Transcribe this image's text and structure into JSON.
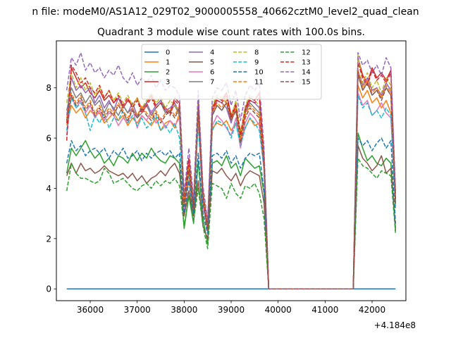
{
  "chart_data": {
    "type": "line",
    "suptitle": "n file: modeM0/AS1A12_029T02_9000005558_40662cztM0_level2_quad_clean",
    "title": "Quadrant 3 module wise count rates with 100.0s bins.",
    "xlabel": "",
    "ylabel": "",
    "offset_text": "+4.184e8",
    "xlim": [
      35280,
      42720
    ],
    "ylim": [
      -0.47,
      9.87
    ],
    "x_ticks": [
      36000,
      37000,
      38000,
      39000,
      40000,
      41000,
      42000
    ],
    "x_tick_labels": [
      "36000",
      "37000",
      "38000",
      "39000",
      "40000",
      "41000",
      "42000"
    ],
    "y_ticks": [
      0,
      2,
      4,
      6,
      8
    ],
    "y_tick_labels": [
      "0",
      "2",
      "4",
      "6",
      "8"
    ],
    "grid": false,
    "legend": {
      "placement": "top-center",
      "columns": 4
    },
    "x": [
      35500,
      35600,
      35700,
      35800,
      35900,
      36000,
      36100,
      36200,
      36300,
      36400,
      36500,
      36600,
      36700,
      36800,
      36900,
      37000,
      37100,
      37200,
      37300,
      37400,
      37500,
      37600,
      37700,
      37800,
      37900,
      38000,
      38100,
      38200,
      38300,
      38400,
      38500,
      38600,
      38700,
      38800,
      38900,
      39000,
      39100,
      39200,
      39300,
      39400,
      39500,
      39600,
      39700,
      39800,
      41600,
      41700,
      41800,
      41900,
      42000,
      42100,
      42200,
      42300,
      42400,
      42500
    ],
    "series": [
      {
        "name": "0",
        "color": "#1f77b4",
        "dash": "solid",
        "values": [
          0,
          0,
          0,
          0,
          0,
          0,
          0,
          0,
          0,
          0,
          0,
          0,
          0,
          0,
          0,
          0,
          0,
          0,
          0,
          0,
          0,
          0,
          0,
          0,
          0,
          0,
          0,
          0,
          0,
          0,
          0,
          0,
          0,
          0,
          0,
          0,
          0,
          0,
          0,
          0,
          0,
          0,
          0,
          0,
          0,
          0,
          0,
          0,
          0,
          0,
          0,
          0,
          0,
          0
        ]
      },
      {
        "name": "1",
        "color": "#ff7f0e",
        "dash": "solid",
        "values": [
          6.5,
          7.3,
          7.0,
          7.2,
          6.8,
          7.1,
          6.9,
          7.0,
          6.6,
          6.8,
          7.0,
          6.7,
          6.9,
          6.5,
          6.8,
          6.6,
          6.9,
          6.7,
          6.5,
          6.8,
          6.3,
          6.6,
          6.7,
          6.4,
          7.0,
          3.2,
          4.3,
          3.0,
          6.7,
          3.4,
          2.3,
          6.4,
          6.6,
          6.5,
          6.7,
          6.3,
          6.6,
          5.8,
          6.4,
          6.8,
          6.5,
          6.6,
          5.0,
          0,
          0,
          8.1,
          7.6,
          7.9,
          7.4,
          7.6,
          7.2,
          7.5,
          7.0,
          3.2
        ]
      },
      {
        "name": "2",
        "color": "#2ca02c",
        "dash": "solid",
        "values": [
          4.6,
          5.6,
          5.3,
          5.6,
          5.9,
          5.5,
          5.2,
          5.4,
          5.0,
          5.2,
          4.9,
          5.3,
          5.2,
          5.0,
          5.4,
          5.1,
          5.4,
          5.2,
          5.6,
          5.3,
          5.1,
          5.0,
          5.3,
          5.2,
          5.0,
          2.4,
          3.7,
          2.6,
          5.1,
          2.8,
          1.8,
          5.0,
          5.1,
          4.9,
          5.3,
          4.8,
          5.0,
          4.5,
          5.2,
          5.0,
          4.8,
          4.9,
          3.8,
          0,
          0,
          6.2,
          5.6,
          5.1,
          5.3,
          5.0,
          4.9,
          5.2,
          5.0,
          2.3
        ]
      },
      {
        "name": "3",
        "color": "#d62728",
        "dash": "solid",
        "values": [
          6.6,
          8.8,
          8.4,
          8.0,
          8.2,
          7.8,
          7.6,
          7.9,
          7.5,
          7.7,
          7.4,
          7.6,
          7.2,
          7.5,
          7.3,
          7.6,
          7.1,
          7.4,
          7.7,
          7.3,
          7.5,
          7.2,
          7.0,
          7.6,
          7.4,
          3.6,
          5.2,
          3.4,
          7.4,
          3.9,
          2.5,
          7.2,
          7.6,
          7.5,
          7.8,
          6.9,
          7.4,
          6.2,
          7.2,
          7.6,
          7.5,
          7.8,
          5.3,
          0,
          0,
          9.2,
          8.5,
          8.2,
          8.8,
          8.4,
          8.6,
          8.3,
          8.7,
          3.5
        ]
      },
      {
        "name": "4",
        "color": "#9467bd",
        "dash": "solid",
        "values": [
          6.9,
          8.4,
          7.9,
          8.1,
          7.8,
          8.0,
          7.4,
          7.7,
          7.2,
          7.5,
          7.1,
          7.6,
          7.3,
          7.0,
          7.4,
          6.9,
          7.2,
          7.4,
          7.0,
          7.3,
          7.5,
          7.1,
          7.2,
          7.4,
          7.0,
          3.5,
          5.0,
          3.3,
          7.3,
          3.8,
          2.6,
          7.0,
          7.5,
          7.4,
          7.2,
          6.6,
          7.3,
          6.0,
          7.1,
          7.5,
          7.4,
          7.2,
          5.0,
          0,
          0,
          8.7,
          8.1,
          8.4,
          7.9,
          8.0,
          7.7,
          8.2,
          7.9,
          3.8
        ]
      },
      {
        "name": "5",
        "color": "#8c564b",
        "dash": "solid",
        "values": [
          4.5,
          5.0,
          4.6,
          5.0,
          4.7,
          4.8,
          4.6,
          4.7,
          4.9,
          4.7,
          4.6,
          4.5,
          4.6,
          4.4,
          4.6,
          4.3,
          4.5,
          4.2,
          4.4,
          4.5,
          4.7,
          4.5,
          4.8,
          5.0,
          4.6,
          2.9,
          3.9,
          2.9,
          4.3,
          2.5,
          2.0,
          4.7,
          4.6,
          4.8,
          4.5,
          4.3,
          4.6,
          4.1,
          4.5,
          4.7,
          4.6,
          4.5,
          3.4,
          0,
          0,
          5.7,
          5.2,
          5.0,
          4.7,
          4.9,
          5.3,
          4.6,
          4.8,
          2.4
        ]
      },
      {
        "name": "6",
        "color": "#e377c2",
        "dash": "solid",
        "values": [
          6.1,
          7.7,
          7.2,
          7.5,
          7.0,
          7.3,
          6.8,
          7.1,
          6.7,
          7.0,
          6.9,
          6.5,
          6.8,
          6.6,
          7.2,
          6.4,
          6.9,
          6.7,
          7.1,
          6.6,
          6.8,
          6.4,
          6.7,
          6.5,
          6.8,
          3.1,
          4.6,
          3.2,
          6.8,
          3.3,
          2.3,
          6.5,
          6.9,
          6.7,
          6.4,
          6.1,
          6.8,
          5.6,
          6.6,
          7.0,
          6.8,
          6.5,
          4.7,
          0,
          0,
          7.8,
          7.3,
          7.5,
          6.9,
          7.1,
          7.4,
          7.0,
          6.8,
          3.4
        ]
      },
      {
        "name": "7",
        "color": "#7f7f7f",
        "dash": "solid",
        "values": [
          7.1,
          8.0,
          7.6,
          7.8,
          7.4,
          7.7,
          7.3,
          7.5,
          7.0,
          7.4,
          7.2,
          6.9,
          7.3,
          7.0,
          7.2,
          6.8,
          7.0,
          7.3,
          6.9,
          7.2,
          7.4,
          7.0,
          7.1,
          7.3,
          6.9,
          3.4,
          4.9,
          3.3,
          7.1,
          3.6,
          2.4,
          6.9,
          7.3,
          7.1,
          7.4,
          6.7,
          7.1,
          5.9,
          7.0,
          7.4,
          7.2,
          7.0,
          4.9,
          0,
          0,
          8.5,
          7.9,
          8.2,
          7.7,
          7.9,
          7.6,
          8.0,
          7.7,
          3.6
        ]
      },
      {
        "name": "8",
        "color": "#bcbd22",
        "dash": "dashed",
        "values": [
          7.4,
          8.6,
          8.0,
          8.4,
          7.9,
          8.2,
          7.7,
          8.0,
          7.6,
          7.9,
          7.5,
          7.8,
          7.4,
          7.7,
          7.3,
          7.6,
          7.2,
          7.5,
          7.8,
          7.4,
          7.6,
          7.2,
          7.5,
          7.3,
          7.1,
          3.5,
          5.0,
          3.4,
          7.5,
          3.8,
          2.5,
          7.3,
          7.7,
          7.6,
          7.4,
          6.8,
          7.5,
          6.1,
          7.3,
          7.7,
          7.5,
          7.3,
          5.2,
          0,
          0,
          9.3,
          8.2,
          8.6,
          8.0,
          8.3,
          7.8,
          8.4,
          8.1,
          3.7
        ]
      },
      {
        "name": "9",
        "color": "#17becf",
        "dash": "dashed",
        "values": [
          6.3,
          7.6,
          7.2,
          7.4,
          7.0,
          6.3,
          6.9,
          6.6,
          7.0,
          6.4,
          6.8,
          6.7,
          7.1,
          6.6,
          6.9,
          6.5,
          6.8,
          6.4,
          6.6,
          6.9,
          6.3,
          6.5,
          6.2,
          6.6,
          6.0,
          3.3,
          4.6,
          3.1,
          6.6,
          3.5,
          2.2,
          6.3,
          6.7,
          6.6,
          6.5,
          6.0,
          6.6,
          5.7,
          6.4,
          6.8,
          6.6,
          6.3,
          4.8,
          0,
          0,
          7.7,
          7.2,
          7.4,
          6.9,
          7.1,
          6.8,
          7.2,
          6.9,
          3.2
        ]
      },
      {
        "name": "10",
        "color": "#1f77b4",
        "dash": "dashed",
        "values": [
          5.0,
          5.9,
          5.5,
          5.7,
          5.3,
          5.5,
          5.6,
          5.4,
          5.6,
          5.2,
          5.5,
          5.3,
          5.6,
          5.2,
          5.3,
          5.5,
          5.1,
          5.4,
          5.2,
          5.4,
          5.5,
          5.3,
          5.5,
          5.2,
          5.4,
          3.0,
          4.3,
          3.0,
          5.4,
          3.0,
          2.2,
          5.3,
          5.4,
          5.2,
          5.5,
          5.0,
          5.3,
          4.8,
          5.2,
          5.4,
          5.3,
          5.4,
          3.9,
          0,
          0,
          6.0,
          5.7,
          5.9,
          5.5,
          5.8,
          6.0,
          5.6,
          5.9,
          2.6
        ]
      },
      {
        "name": "11",
        "color": "#ff7f0e",
        "dash": "dashed",
        "values": [
          6.8,
          7.8,
          7.4,
          7.7,
          7.2,
          7.5,
          7.0,
          7.3,
          6.9,
          7.2,
          7.0,
          7.4,
          7.1,
          6.8,
          7.2,
          6.9,
          7.3,
          7.0,
          6.8,
          7.1,
          6.7,
          7.0,
          7.2,
          6.9,
          7.3,
          3.3,
          4.8,
          3.3,
          7.2,
          3.6,
          2.4,
          7.0,
          7.4,
          7.2,
          7.5,
          6.8,
          7.2,
          5.9,
          6.9,
          7.3,
          7.1,
          6.9,
          5.0,
          0,
          0,
          8.7,
          8.0,
          8.3,
          7.8,
          8.0,
          7.6,
          8.1,
          7.8,
          3.5
        ]
      },
      {
        "name": "12",
        "color": "#2ca02c",
        "dash": "dashed",
        "values": [
          3.9,
          5.0,
          4.6,
          4.4,
          4.4,
          4.3,
          4.2,
          4.3,
          4.8,
          4.6,
          4.2,
          4.3,
          4.4,
          4.2,
          4.0,
          3.9,
          4.1,
          4.2,
          4.0,
          4.3,
          4.1,
          4.3,
          4.2,
          4.4,
          4.1,
          2.5,
          3.7,
          2.7,
          4.0,
          2.5,
          1.6,
          4.2,
          4.1,
          4.0,
          3.6,
          4.2,
          3.8,
          3.6,
          4.1,
          4.0,
          4.2,
          3.8,
          2.8,
          0,
          0,
          5.2,
          4.9,
          4.8,
          4.6,
          4.4,
          4.7,
          4.6,
          4.5,
          2.2
        ]
      },
      {
        "name": "13",
        "color": "#d62728",
        "dash": "dashed",
        "values": [
          5.9,
          8.9,
          8.6,
          8.2,
          8.4,
          8.0,
          7.8,
          8.1,
          7.6,
          7.9,
          7.4,
          7.7,
          7.3,
          7.6,
          7.2,
          7.5,
          7.0,
          7.3,
          7.6,
          7.2,
          7.4,
          7.1,
          6.9,
          7.5,
          7.3,
          3.4,
          5.1,
          3.3,
          7.5,
          3.7,
          2.5,
          7.1,
          7.5,
          7.4,
          7.7,
          6.8,
          7.3,
          6.1,
          7.1,
          7.5,
          7.4,
          7.6,
          5.1,
          0,
          0,
          9.0,
          8.4,
          8.1,
          8.7,
          8.3,
          8.5,
          8.2,
          8.6,
          3.4
        ]
      },
      {
        "name": "14",
        "color": "#9467bd",
        "dash": "dashed",
        "values": [
          7.9,
          9.2,
          8.9,
          9.4,
          8.7,
          9.0,
          8.6,
          8.8,
          8.4,
          8.7,
          8.5,
          8.9,
          8.4,
          8.2,
          8.6,
          8.1,
          8.4,
          8.2,
          8.5,
          8.0,
          8.3,
          7.9,
          8.1,
          8.0,
          7.7,
          3.8,
          5.6,
          3.6,
          7.9,
          4.1,
          2.7,
          7.6,
          8.0,
          7.9,
          8.2,
          7.3,
          7.9,
          6.7,
          7.7,
          8.1,
          7.9,
          8.2,
          5.6,
          0,
          0,
          9.4,
          8.9,
          9.1,
          8.6,
          8.9,
          8.5,
          9.2,
          8.8,
          3.9
        ]
      },
      {
        "name": "15",
        "color": "#8c564b",
        "dash": "dashed",
        "values": [
          6.7,
          7.7,
          7.3,
          7.6,
          7.1,
          7.4,
          6.9,
          7.2,
          6.8,
          7.1,
          6.9,
          7.3,
          7.0,
          6.7,
          7.1,
          6.8,
          7.2,
          6.9,
          6.7,
          7.0,
          6.6,
          6.9,
          7.1,
          6.8,
          7.2,
          3.3,
          4.7,
          3.2,
          7.1,
          3.5,
          2.3,
          6.9,
          7.3,
          7.1,
          7.4,
          6.7,
          7.1,
          5.8,
          6.8,
          7.2,
          7.0,
          6.8,
          4.9,
          0,
          0,
          8.6,
          7.9,
          8.2,
          7.7,
          7.9,
          7.5,
          8.0,
          7.7,
          3.4
        ]
      }
    ]
  }
}
